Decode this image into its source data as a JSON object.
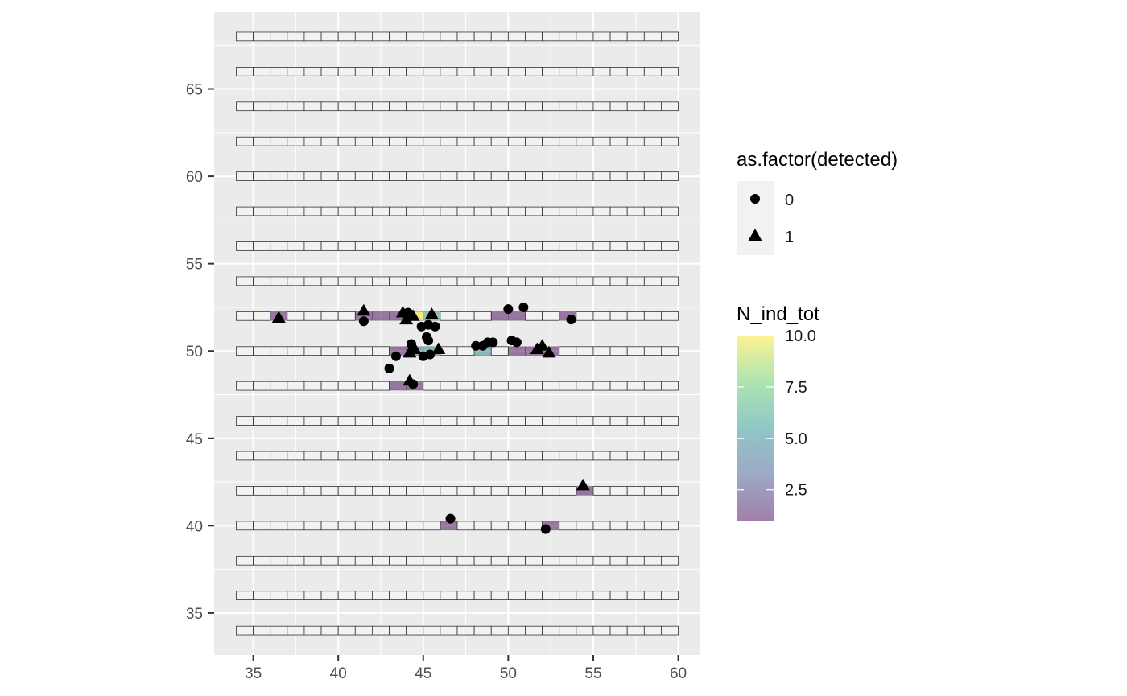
{
  "chart_data": {
    "type": "scatter",
    "title": "",
    "xlabel": "",
    "ylabel": "",
    "xlim": [
      32.7,
      61.3
    ],
    "ylim": [
      32.6,
      69.4
    ],
    "xticks": [
      35,
      40,
      45,
      50,
      55,
      60
    ],
    "yticks": [
      35,
      40,
      45,
      50,
      55,
      60,
      65
    ],
    "x_tick_labels": [
      "35",
      "40",
      "45",
      "50",
      "55",
      "60"
    ],
    "y_tick_labels": [
      "35",
      "40",
      "45",
      "50",
      "55",
      "60",
      "65"
    ],
    "grid": true,
    "panel_background": "#ebebeb",
    "grid_color": "#ffffff",
    "cell_outline_color": "#333333",
    "cell_fill_empty": "#f2f2f2",
    "grid_cells": {
      "x_start": 34,
      "x_end": 60,
      "cell_width": 1,
      "cell_height": 0.5,
      "rows_y": [
        34,
        36,
        38,
        40,
        42,
        44,
        46,
        48,
        50,
        52,
        54,
        56,
        58,
        60,
        62,
        64,
        66,
        68
      ]
    },
    "filled_cells": [
      {
        "x": 36,
        "y": 52,
        "n": 1
      },
      {
        "x": 41,
        "y": 52,
        "n": 1
      },
      {
        "x": 42,
        "y": 52,
        "n": 1
      },
      {
        "x": 43,
        "y": 52,
        "n": 1
      },
      {
        "x": 44,
        "y": 52,
        "n": 10
      },
      {
        "x": 45,
        "y": 52,
        "n": 6
      },
      {
        "x": 49,
        "y": 52,
        "n": 1
      },
      {
        "x": 50,
        "y": 52,
        "n": 1
      },
      {
        "x": 53,
        "y": 52,
        "n": 1
      },
      {
        "x": 43,
        "y": 50,
        "n": 1
      },
      {
        "x": 44,
        "y": 50,
        "n": 4
      },
      {
        "x": 45,
        "y": 50,
        "n": 5
      },
      {
        "x": 48,
        "y": 50,
        "n": 5
      },
      {
        "x": 50,
        "y": 50,
        "n": 1
      },
      {
        "x": 51,
        "y": 50,
        "n": 1
      },
      {
        "x": 52,
        "y": 50,
        "n": 1
      },
      {
        "x": 43,
        "y": 48,
        "n": 1
      },
      {
        "x": 44,
        "y": 48,
        "n": 1
      },
      {
        "x": 54,
        "y": 42,
        "n": 1
      },
      {
        "x": 46,
        "y": 40,
        "n": 1
      },
      {
        "x": 52,
        "y": 40,
        "n": 1
      }
    ],
    "points": [
      {
        "x": 36.5,
        "y": 51.9,
        "detected": 1
      },
      {
        "x": 41.5,
        "y": 52.3,
        "detected": 1
      },
      {
        "x": 41.5,
        "y": 51.7,
        "detected": 0
      },
      {
        "x": 43.8,
        "y": 52.2,
        "detected": 1
      },
      {
        "x": 44.1,
        "y": 52.2,
        "detected": 0
      },
      {
        "x": 44.4,
        "y": 52.0,
        "detected": 1
      },
      {
        "x": 44.0,
        "y": 51.8,
        "detected": 1
      },
      {
        "x": 45.5,
        "y": 52.1,
        "detected": 1
      },
      {
        "x": 44.9,
        "y": 51.4,
        "detected": 0
      },
      {
        "x": 45.3,
        "y": 51.5,
        "detected": 0
      },
      {
        "x": 45.7,
        "y": 51.4,
        "detected": 0
      },
      {
        "x": 45.2,
        "y": 50.8,
        "detected": 0
      },
      {
        "x": 45.3,
        "y": 50.6,
        "detected": 0
      },
      {
        "x": 44.3,
        "y": 50.4,
        "detected": 0
      },
      {
        "x": 44.5,
        "y": 50.1,
        "detected": 1
      },
      {
        "x": 44.2,
        "y": 49.9,
        "detected": 1
      },
      {
        "x": 45.0,
        "y": 49.7,
        "detected": 0
      },
      {
        "x": 45.4,
        "y": 49.8,
        "detected": 0
      },
      {
        "x": 45.9,
        "y": 50.1,
        "detected": 1
      },
      {
        "x": 43.4,
        "y": 49.7,
        "detected": 0
      },
      {
        "x": 43.0,
        "y": 49.0,
        "detected": 0
      },
      {
        "x": 44.2,
        "y": 48.3,
        "detected": 1
      },
      {
        "x": 44.4,
        "y": 48.1,
        "detected": 0
      },
      {
        "x": 48.1,
        "y": 50.3,
        "detected": 0
      },
      {
        "x": 48.5,
        "y": 50.3,
        "detected": 0
      },
      {
        "x": 48.8,
        "y": 50.5,
        "detected": 0
      },
      {
        "x": 49.1,
        "y": 50.5,
        "detected": 0
      },
      {
        "x": 50.0,
        "y": 52.4,
        "detected": 0
      },
      {
        "x": 50.9,
        "y": 52.5,
        "detected": 0
      },
      {
        "x": 50.2,
        "y": 50.6,
        "detected": 0
      },
      {
        "x": 50.5,
        "y": 50.5,
        "detected": 0
      },
      {
        "x": 51.7,
        "y": 50.1,
        "detected": 1
      },
      {
        "x": 52.0,
        "y": 50.3,
        "detected": 1
      },
      {
        "x": 52.4,
        "y": 49.9,
        "detected": 1
      },
      {
        "x": 53.7,
        "y": 51.8,
        "detected": 0
      },
      {
        "x": 54.4,
        "y": 42.3,
        "detected": 1
      },
      {
        "x": 46.6,
        "y": 40.4,
        "detected": 0
      },
      {
        "x": 52.2,
        "y": 39.8,
        "detected": 0
      }
    ],
    "legend_shape": {
      "title": "as.factor(detected)",
      "entries": [
        {
          "label": "0",
          "shape": "circle"
        },
        {
          "label": "1",
          "shape": "triangle"
        }
      ]
    },
    "legend_fill": {
      "title": "N_ind_tot",
      "min": 1,
      "max": 10,
      "ticks": [
        2.5,
        5.0,
        7.5,
        10.0
      ],
      "tick_labels": [
        "2.5",
        "5.0",
        "7.5",
        "10.0"
      ],
      "palette": [
        "#440154",
        "#3b528b",
        "#21908c",
        "#5dc963",
        "#fde725"
      ],
      "alpha": 0.5
    },
    "legend_placement": "right"
  }
}
